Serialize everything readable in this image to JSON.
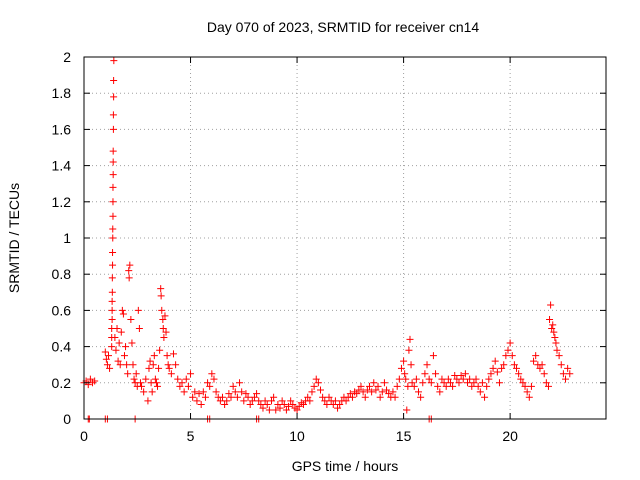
{
  "chart_data": {
    "type": "scatter",
    "title": "Day 070 of 2023, SRMTID for receiver cn14",
    "xlabel": "GPS time / hours",
    "ylabel": "SRMTID / TECUs",
    "xlim": [
      0,
      24.5
    ],
    "ylim": [
      0,
      2
    ],
    "xticks": [
      0,
      5,
      10,
      15,
      20
    ],
    "yticks": [
      0,
      0.2,
      0.4,
      0.6,
      0.8,
      1,
      1.2,
      1.4,
      1.6,
      1.8,
      2
    ],
    "xtick_labels": [
      "0",
      "5",
      "10",
      "15",
      "20"
    ],
    "ytick_labels": [
      "0",
      "0.2",
      "0.4",
      "0.6",
      "0.8",
      "1",
      "1.2",
      "1.4",
      "1.6",
      "1.8",
      "2"
    ],
    "grid": true,
    "marker": "+",
    "color": "#ff0000",
    "series": [
      {
        "name": "SRMTID",
        "points": [
          [
            0.0,
            0.2
          ],
          [
            0.1,
            0.21
          ],
          [
            0.2,
            0.19
          ],
          [
            0.3,
            0.22
          ],
          [
            0.4,
            0.2
          ],
          [
            0.5,
            0.21
          ],
          [
            0.2,
            0.0
          ],
          [
            0.25,
            0.0
          ],
          [
            1.0,
            0.0
          ],
          [
            1.1,
            0.0
          ],
          [
            2.4,
            0.0
          ],
          [
            5.8,
            0.0
          ],
          [
            5.9,
            0.0
          ],
          [
            8.1,
            0.0
          ],
          [
            8.2,
            0.0
          ],
          [
            16.2,
            0.0
          ],
          [
            16.3,
            0.0
          ],
          [
            1.0,
            0.37
          ],
          [
            1.05,
            0.33
          ],
          [
            1.1,
            0.3
          ],
          [
            1.15,
            0.35
          ],
          [
            1.2,
            0.28
          ],
          [
            1.3,
            0.4
          ],
          [
            1.3,
            0.45
          ],
          [
            1.3,
            0.5
          ],
          [
            1.32,
            0.55
          ],
          [
            1.32,
            0.6
          ],
          [
            1.32,
            0.65
          ],
          [
            1.33,
            0.7
          ],
          [
            1.33,
            0.78
          ],
          [
            1.34,
            0.85
          ],
          [
            1.34,
            0.92
          ],
          [
            1.35,
            1.0
          ],
          [
            1.35,
            1.05
          ],
          [
            1.36,
            1.12
          ],
          [
            1.36,
            1.2
          ],
          [
            1.36,
            1.28
          ],
          [
            1.37,
            1.35
          ],
          [
            1.37,
            1.42
          ],
          [
            1.37,
            1.48
          ],
          [
            1.38,
            1.6
          ],
          [
            1.38,
            1.68
          ],
          [
            1.39,
            1.78
          ],
          [
            1.39,
            1.87
          ],
          [
            1.4,
            1.98
          ],
          [
            1.45,
            0.45
          ],
          [
            1.5,
            0.38
          ],
          [
            1.55,
            0.5
          ],
          [
            1.6,
            0.32
          ],
          [
            1.65,
            0.42
          ],
          [
            1.7,
            0.3
          ],
          [
            1.75,
            0.48
          ],
          [
            1.8,
            0.6
          ],
          [
            1.85,
            0.58
          ],
          [
            1.9,
            0.35
          ],
          [
            1.95,
            0.4
          ],
          [
            2.0,
            0.3
          ],
          [
            2.05,
            0.25
          ],
          [
            2.1,
            0.82
          ],
          [
            2.12,
            0.78
          ],
          [
            2.15,
            0.85
          ],
          [
            2.2,
            0.55
          ],
          [
            2.25,
            0.42
          ],
          [
            2.3,
            0.3
          ],
          [
            2.35,
            0.22
          ],
          [
            2.4,
            0.2
          ],
          [
            2.45,
            0.25
          ],
          [
            2.5,
            0.18
          ],
          [
            2.55,
            0.6
          ],
          [
            2.6,
            0.5
          ],
          [
            2.65,
            0.2
          ],
          [
            2.7,
            0.18
          ],
          [
            2.8,
            0.15
          ],
          [
            2.9,
            0.22
          ],
          [
            3.0,
            0.1
          ],
          [
            3.05,
            0.28
          ],
          [
            3.1,
            0.32
          ],
          [
            3.15,
            0.2
          ],
          [
            3.2,
            0.15
          ],
          [
            3.25,
            0.3
          ],
          [
            3.3,
            0.35
          ],
          [
            3.35,
            0.22
          ],
          [
            3.4,
            0.2
          ],
          [
            3.45,
            0.18
          ],
          [
            3.5,
            0.28
          ],
          [
            3.55,
            0.38
          ],
          [
            3.6,
            0.72
          ],
          [
            3.62,
            0.68
          ],
          [
            3.65,
            0.6
          ],
          [
            3.7,
            0.55
          ],
          [
            3.72,
            0.5
          ],
          [
            3.75,
            0.45
          ],
          [
            3.8,
            0.57
          ],
          [
            3.85,
            0.48
          ],
          [
            3.9,
            0.35
          ],
          [
            3.95,
            0.3
          ],
          [
            4.0,
            0.28
          ],
          [
            4.1,
            0.25
          ],
          [
            4.2,
            0.36
          ],
          [
            4.3,
            0.3
          ],
          [
            4.4,
            0.22
          ],
          [
            4.5,
            0.18
          ],
          [
            4.6,
            0.2
          ],
          [
            4.7,
            0.15
          ],
          [
            4.8,
            0.22
          ],
          [
            4.9,
            0.18
          ],
          [
            5.0,
            0.25
          ],
          [
            5.1,
            0.12
          ],
          [
            5.2,
            0.15
          ],
          [
            5.3,
            0.1
          ],
          [
            5.4,
            0.14
          ],
          [
            5.5,
            0.08
          ],
          [
            5.6,
            0.15
          ],
          [
            5.7,
            0.12
          ],
          [
            5.8,
            0.2
          ],
          [
            5.9,
            0.18
          ],
          [
            6.0,
            0.25
          ],
          [
            6.1,
            0.22
          ],
          [
            6.2,
            0.15
          ],
          [
            6.3,
            0.12
          ],
          [
            6.4,
            0.1
          ],
          [
            6.5,
            0.12
          ],
          [
            6.6,
            0.08
          ],
          [
            6.7,
            0.1
          ],
          [
            6.8,
            0.14
          ],
          [
            6.9,
            0.12
          ],
          [
            7.0,
            0.18
          ],
          [
            7.1,
            0.15
          ],
          [
            7.2,
            0.12
          ],
          [
            7.3,
            0.2
          ],
          [
            7.4,
            0.15
          ],
          [
            7.5,
            0.1
          ],
          [
            7.6,
            0.14
          ],
          [
            7.7,
            0.12
          ],
          [
            7.8,
            0.08
          ],
          [
            7.9,
            0.1
          ],
          [
            8.0,
            0.12
          ],
          [
            8.1,
            0.14
          ],
          [
            8.2,
            0.1
          ],
          [
            8.3,
            0.08
          ],
          [
            8.4,
            0.06
          ],
          [
            8.5,
            0.1
          ],
          [
            8.6,
            0.08
          ],
          [
            8.7,
            0.05
          ],
          [
            8.8,
            0.1
          ],
          [
            8.9,
            0.12
          ],
          [
            9.0,
            0.05
          ],
          [
            9.1,
            0.08
          ],
          [
            9.2,
            0.06
          ],
          [
            9.3,
            0.1
          ],
          [
            9.4,
            0.08
          ],
          [
            9.5,
            0.05
          ],
          [
            9.6,
            0.07
          ],
          [
            9.7,
            0.1
          ],
          [
            9.8,
            0.08
          ],
          [
            9.9,
            0.06
          ],
          [
            10.0,
            0.05
          ],
          [
            10.1,
            0.07
          ],
          [
            10.2,
            0.09
          ],
          [
            10.3,
            0.08
          ],
          [
            10.4,
            0.1
          ],
          [
            10.5,
            0.12
          ],
          [
            10.6,
            0.1
          ],
          [
            10.7,
            0.15
          ],
          [
            10.8,
            0.18
          ],
          [
            10.9,
            0.22
          ],
          [
            11.0,
            0.2
          ],
          [
            11.1,
            0.16
          ],
          [
            11.2,
            0.12
          ],
          [
            11.3,
            0.1
          ],
          [
            11.4,
            0.08
          ],
          [
            11.5,
            0.12
          ],
          [
            11.6,
            0.1
          ],
          [
            11.7,
            0.08
          ],
          [
            11.8,
            0.1
          ],
          [
            11.9,
            0.06
          ],
          [
            12.0,
            0.08
          ],
          [
            12.1,
            0.1
          ],
          [
            12.2,
            0.12
          ],
          [
            12.3,
            0.1
          ],
          [
            12.4,
            0.12
          ],
          [
            12.5,
            0.14
          ],
          [
            12.6,
            0.12
          ],
          [
            12.7,
            0.15
          ],
          [
            12.8,
            0.14
          ],
          [
            12.9,
            0.16
          ],
          [
            13.0,
            0.18
          ],
          [
            13.1,
            0.15
          ],
          [
            13.2,
            0.12
          ],
          [
            13.3,
            0.16
          ],
          [
            13.4,
            0.18
          ],
          [
            13.5,
            0.15
          ],
          [
            13.6,
            0.2
          ],
          [
            13.7,
            0.16
          ],
          [
            13.8,
            0.18
          ],
          [
            13.9,
            0.12
          ],
          [
            14.0,
            0.15
          ],
          [
            14.1,
            0.2
          ],
          [
            14.2,
            0.16
          ],
          [
            14.3,
            0.14
          ],
          [
            14.4,
            0.12
          ],
          [
            14.5,
            0.15
          ],
          [
            14.6,
            0.12
          ],
          [
            14.7,
            0.18
          ],
          [
            14.8,
            0.22
          ],
          [
            14.9,
            0.28
          ],
          [
            15.0,
            0.32
          ],
          [
            15.05,
            0.25
          ],
          [
            15.1,
            0.22
          ],
          [
            15.15,
            0.05
          ],
          [
            15.2,
            0.18
          ],
          [
            15.25,
            0.38
          ],
          [
            15.3,
            0.44
          ],
          [
            15.35,
            0.3
          ],
          [
            15.4,
            0.2
          ],
          [
            15.5,
            0.18
          ],
          [
            15.6,
            0.22
          ],
          [
            15.7,
            0.15
          ],
          [
            15.8,
            0.12
          ],
          [
            15.9,
            0.2
          ],
          [
            16.0,
            0.25
          ],
          [
            16.1,
            0.3
          ],
          [
            16.2,
            0.22
          ],
          [
            16.3,
            0.2
          ],
          [
            16.4,
            0.35
          ],
          [
            16.5,
            0.25
          ],
          [
            16.6,
            0.18
          ],
          [
            16.7,
            0.15
          ],
          [
            16.8,
            0.22
          ],
          [
            16.9,
            0.2
          ],
          [
            17.0,
            0.18
          ],
          [
            17.1,
            0.22
          ],
          [
            17.2,
            0.2
          ],
          [
            17.3,
            0.18
          ],
          [
            17.4,
            0.24
          ],
          [
            17.5,
            0.22
          ],
          [
            17.6,
            0.2
          ],
          [
            17.7,
            0.24
          ],
          [
            17.8,
            0.22
          ],
          [
            17.9,
            0.25
          ],
          [
            18.0,
            0.2
          ],
          [
            18.1,
            0.22
          ],
          [
            18.2,
            0.18
          ],
          [
            18.3,
            0.2
          ],
          [
            18.4,
            0.22
          ],
          [
            18.5,
            0.18
          ],
          [
            18.6,
            0.15
          ],
          [
            18.7,
            0.2
          ],
          [
            18.8,
            0.12
          ],
          [
            18.9,
            0.18
          ],
          [
            19.0,
            0.22
          ],
          [
            19.1,
            0.25
          ],
          [
            19.2,
            0.28
          ],
          [
            19.3,
            0.32
          ],
          [
            19.4,
            0.26
          ],
          [
            19.5,
            0.2
          ],
          [
            19.6,
            0.28
          ],
          [
            19.7,
            0.3
          ],
          [
            19.8,
            0.35
          ],
          [
            19.9,
            0.38
          ],
          [
            20.0,
            0.42
          ],
          [
            20.1,
            0.35
          ],
          [
            20.2,
            0.3
          ],
          [
            20.3,
            0.28
          ],
          [
            20.4,
            0.25
          ],
          [
            20.5,
            0.22
          ],
          [
            20.6,
            0.2
          ],
          [
            20.7,
            0.18
          ],
          [
            20.8,
            0.15
          ],
          [
            20.9,
            0.12
          ],
          [
            21.0,
            0.18
          ],
          [
            21.1,
            0.32
          ],
          [
            21.2,
            0.35
          ],
          [
            21.3,
            0.3
          ],
          [
            21.4,
            0.28
          ],
          [
            21.5,
            0.3
          ],
          [
            21.6,
            0.25
          ],
          [
            21.7,
            0.2
          ],
          [
            21.8,
            0.18
          ],
          [
            21.85,
            0.55
          ],
          [
            21.9,
            0.63
          ],
          [
            21.95,
            0.5
          ],
          [
            22.0,
            0.52
          ],
          [
            22.05,
            0.48
          ],
          [
            22.1,
            0.45
          ],
          [
            22.15,
            0.42
          ],
          [
            22.2,
            0.38
          ],
          [
            22.3,
            0.35
          ],
          [
            22.4,
            0.3
          ],
          [
            22.5,
            0.25
          ],
          [
            22.6,
            0.22
          ],
          [
            22.7,
            0.28
          ],
          [
            22.8,
            0.25
          ]
        ]
      }
    ]
  }
}
